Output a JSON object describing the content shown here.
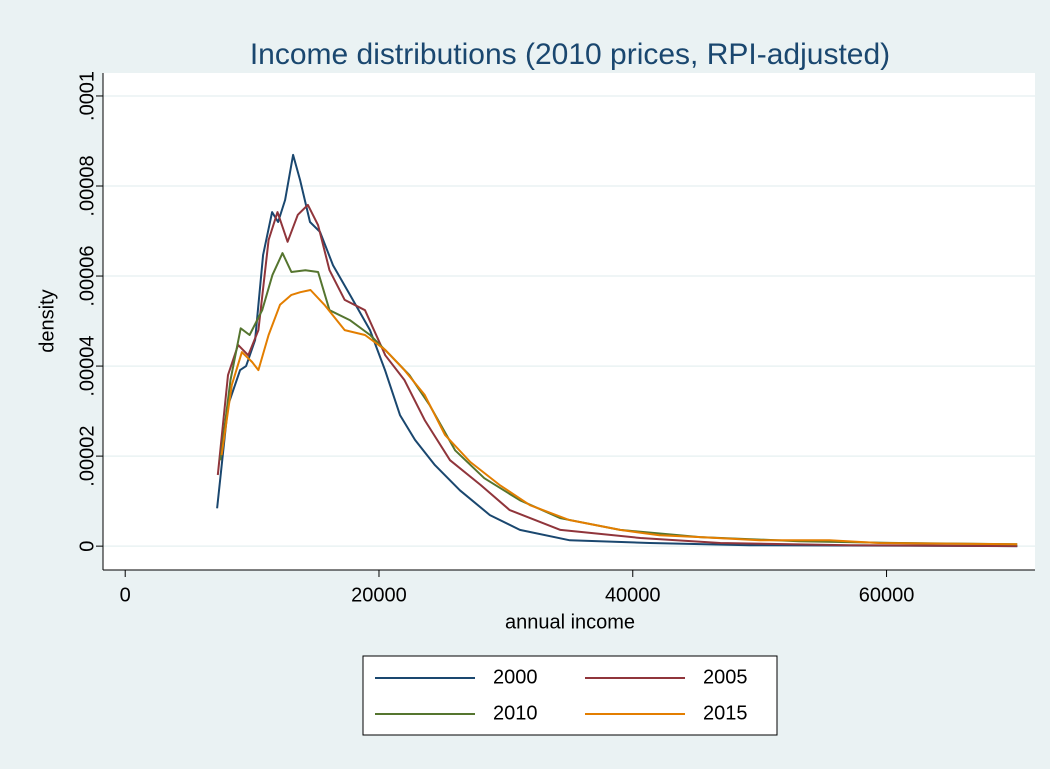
{
  "chart_data": {
    "type": "line",
    "title": "Income distributions (2010 prices, RPI-adjusted)",
    "x_label": "annual income",
    "y_label": "density",
    "xlim": [
      -1750,
      71700
    ],
    "ylim": [
      -5.3e-06,
      0.0001051
    ],
    "xticks": [
      0,
      20000,
      40000,
      60000
    ],
    "yticks": [
      0,
      {
        "value": 2e-05,
        "label": ".00002"
      },
      {
        "value": 4e-05,
        "label": ".00004"
      },
      {
        "value": 6e-05,
        "label": ".00006"
      },
      {
        "value": 8e-05,
        "label": ".00008"
      },
      {
        "value": 0.0001,
        "label": ".0001"
      }
    ],
    "grid": true,
    "legend_position": "bottom",
    "series": [
      {
        "name": "2000",
        "color": "#1a476f",
        "x": [
          7244,
          8110,
          9055,
          9528,
          10236,
          10866,
          11575,
          12047,
          12598,
          13228,
          13780,
          14567,
          15354,
          16378,
          17717,
          19291,
          20472,
          21654,
          22835,
          24409,
          26378,
          28740,
          31102,
          35039,
          41339,
          49213,
          70315
        ],
        "values": [
          8.4e-06,
          3.13e-05,
          3.91e-05,
          4e-05,
          4.58e-05,
          6.47e-05,
          7.42e-05,
          7.2e-05,
          7.69e-05,
          8.69e-05,
          8.13e-05,
          7.2e-05,
          6.98e-05,
          6.24e-05,
          5.58e-05,
          4.8e-05,
          3.91e-05,
          2.91e-05,
          2.36e-05,
          1.8e-05,
          1.24e-05,
          6.9e-06,
          3.6e-06,
          1.3e-06,
          7e-07,
          2e-07,
          0
        ]
      },
      {
        "name": "2005",
        "color": "#90353b",
        "x": [
          7300,
          8100,
          8900,
          9700,
          10500,
          11300,
          12000,
          12800,
          13600,
          14400,
          15200,
          16100,
          17300,
          18900,
          20500,
          22000,
          23600,
          25600,
          28000,
          30300,
          34300,
          40600,
          46900,
          57100,
          70300
        ],
        "values": [
          1.58e-05,
          3.8e-05,
          4.47e-05,
          4.24e-05,
          4.8e-05,
          6.8e-05,
          7.42e-05,
          6.76e-05,
          7.36e-05,
          7.58e-05,
          7.13e-05,
          6.13e-05,
          5.47e-05,
          5.24e-05,
          4.24e-05,
          3.69e-05,
          2.8e-05,
          1.91e-05,
          1.36e-05,
          8e-06,
          3.6e-06,
          1.8e-06,
          7e-07,
          2e-07,
          0
        ]
      },
      {
        "name": "2010",
        "color": "#55752f",
        "x": [
          7500,
          8300,
          9100,
          9800,
          10800,
          11600,
          12400,
          13100,
          14200,
          15200,
          16100,
          17700,
          19300,
          20900,
          22400,
          24000,
          26000,
          28300,
          31100,
          34300,
          39000,
          45300,
          53100,
          61000,
          70300
        ],
        "values": [
          1.91e-05,
          3.69e-05,
          4.84e-05,
          4.69e-05,
          5.24e-05,
          6.02e-05,
          6.51e-05,
          6.09e-05,
          6.13e-05,
          6.09e-05,
          5.24e-05,
          5.02e-05,
          4.69e-05,
          4.24e-05,
          3.8e-05,
          3.13e-05,
          2.13e-05,
          1.51e-05,
          1.02e-05,
          6.2e-06,
          3.6e-06,
          2e-06,
          1.1e-06,
          7e-07,
          4e-07
        ]
      },
      {
        "name": "2015",
        "color": "#e37e00",
        "x": [
          7600,
          8400,
          9200,
          10000,
          10500,
          11300,
          12200,
          13100,
          13800,
          14600,
          15700,
          17300,
          18900,
          20500,
          22000,
          23600,
          25200,
          27200,
          29500,
          31900,
          35000,
          39000,
          42100,
          45300,
          50000,
          55500,
          59400,
          70300
        ],
        "values": [
          2.02e-05,
          3.58e-05,
          4.31e-05,
          4.09e-05,
          3.91e-05,
          4.69e-05,
          5.36e-05,
          5.58e-05,
          5.64e-05,
          5.69e-05,
          5.36e-05,
          4.8e-05,
          4.69e-05,
          4.36e-05,
          3.91e-05,
          3.36e-05,
          2.47e-05,
          1.87e-05,
          1.36e-05,
          9.1e-06,
          5.8e-06,
          3.6e-06,
          2.4e-06,
          2e-06,
          1.3e-06,
          1.3e-06,
          7e-07,
          4e-07
        ]
      }
    ]
  }
}
